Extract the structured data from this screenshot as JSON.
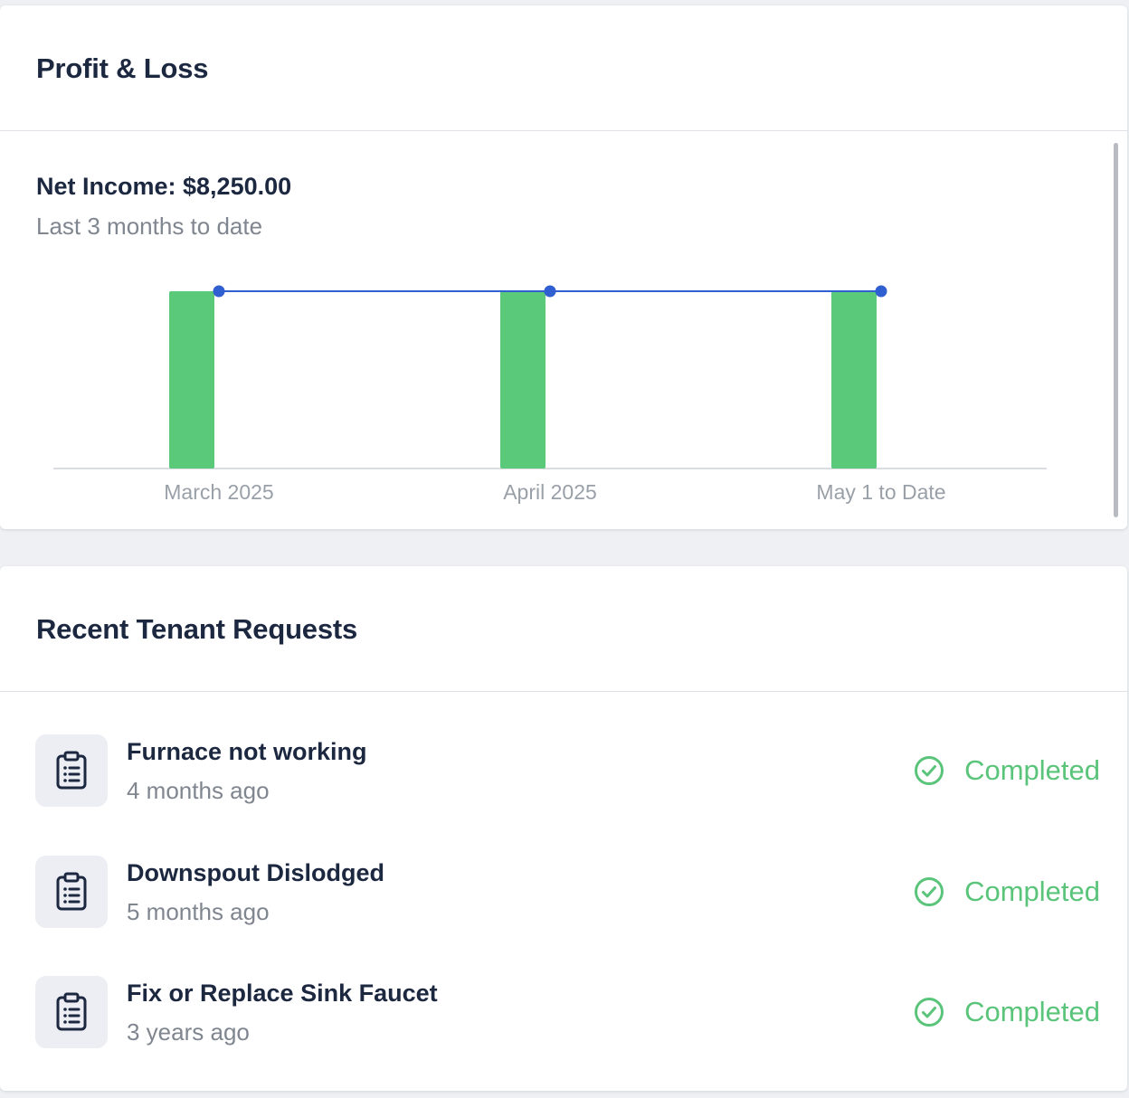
{
  "profit_loss": {
    "title": "Profit & Loss",
    "net_income_label": "Net Income: $8,250.00",
    "period_label": "Last 3 months to date"
  },
  "chart_data": {
    "type": "bar",
    "categories": [
      "March 2025",
      "April 2025",
      "May 1 to Date"
    ],
    "values": [
      2750,
      2750,
      2750
    ],
    "series": [
      {
        "type": "bar",
        "values": [
          2750,
          2750,
          2750
        ]
      },
      {
        "type": "line",
        "values": [
          2750,
          2750,
          2750
        ]
      }
    ],
    "ylim": [
      0,
      2750
    ],
    "grid": false,
    "colors": {
      "bar": "#5ac97a",
      "line": "#2f5fd0",
      "axis": "#d9dce1",
      "tick": "#9aa0a8"
    }
  },
  "tenant_requests": {
    "title": "Recent Tenant Requests",
    "items": [
      {
        "title": "Furnace not working",
        "time": "4 months ago",
        "status": "Completed",
        "icon": "clipboard-list-icon"
      },
      {
        "title": "Downspout Dislodged",
        "time": "5 months ago",
        "status": "Completed",
        "icon": "clipboard-list-icon"
      },
      {
        "title": "Fix or Replace Sink Faucet",
        "time": "3 years ago",
        "status": "Completed",
        "icon": "clipboard-list-icon"
      }
    ],
    "status_icon": "check-circle-icon",
    "status_color": "#5ac47a"
  }
}
